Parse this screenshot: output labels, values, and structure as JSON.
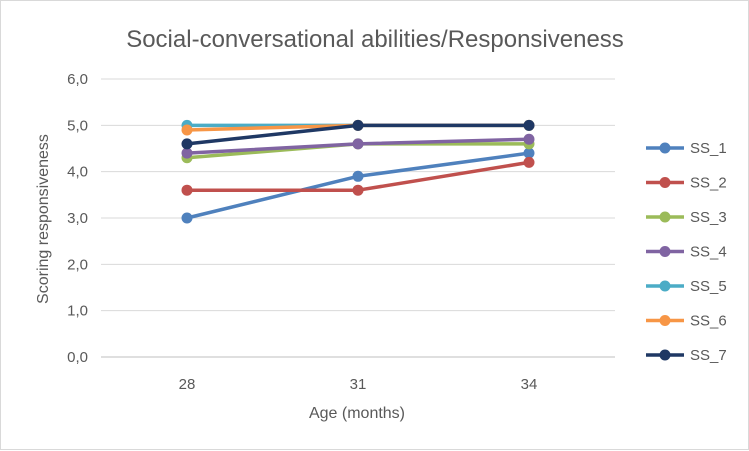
{
  "chart_data": {
    "type": "line",
    "title": "Social-conversational abilities/Responsiveness",
    "xlabel": "Age (months)",
    "ylabel": "Scoring responsiveness",
    "categories": [
      "28",
      "31",
      "34"
    ],
    "ylim": [
      0,
      6
    ],
    "yticks": [
      "0,0",
      "1,0",
      "2,0",
      "3,0",
      "4,0",
      "5,0",
      "6,0"
    ],
    "grid": true,
    "legend_position": "right",
    "series": [
      {
        "name": "SS_1",
        "color": "#4f81bd",
        "values": [
          3.0,
          3.9,
          4.4
        ]
      },
      {
        "name": "SS_2",
        "color": "#c0504d",
        "values": [
          3.6,
          3.6,
          4.2
        ]
      },
      {
        "name": "SS_3",
        "color": "#9bbb59",
        "values": [
          4.3,
          4.6,
          4.6
        ]
      },
      {
        "name": "SS_4",
        "color": "#8064a2",
        "values": [
          4.4,
          4.6,
          4.7
        ]
      },
      {
        "name": "SS_5",
        "color": "#4bacc6",
        "values": [
          5.0,
          5.0,
          5.0
        ]
      },
      {
        "name": "SS_6",
        "color": "#f79646",
        "values": [
          4.9,
          5.0,
          5.0
        ]
      },
      {
        "name": "SS_7",
        "color": "#1f3864",
        "values": [
          4.6,
          5.0,
          5.0
        ]
      }
    ]
  }
}
